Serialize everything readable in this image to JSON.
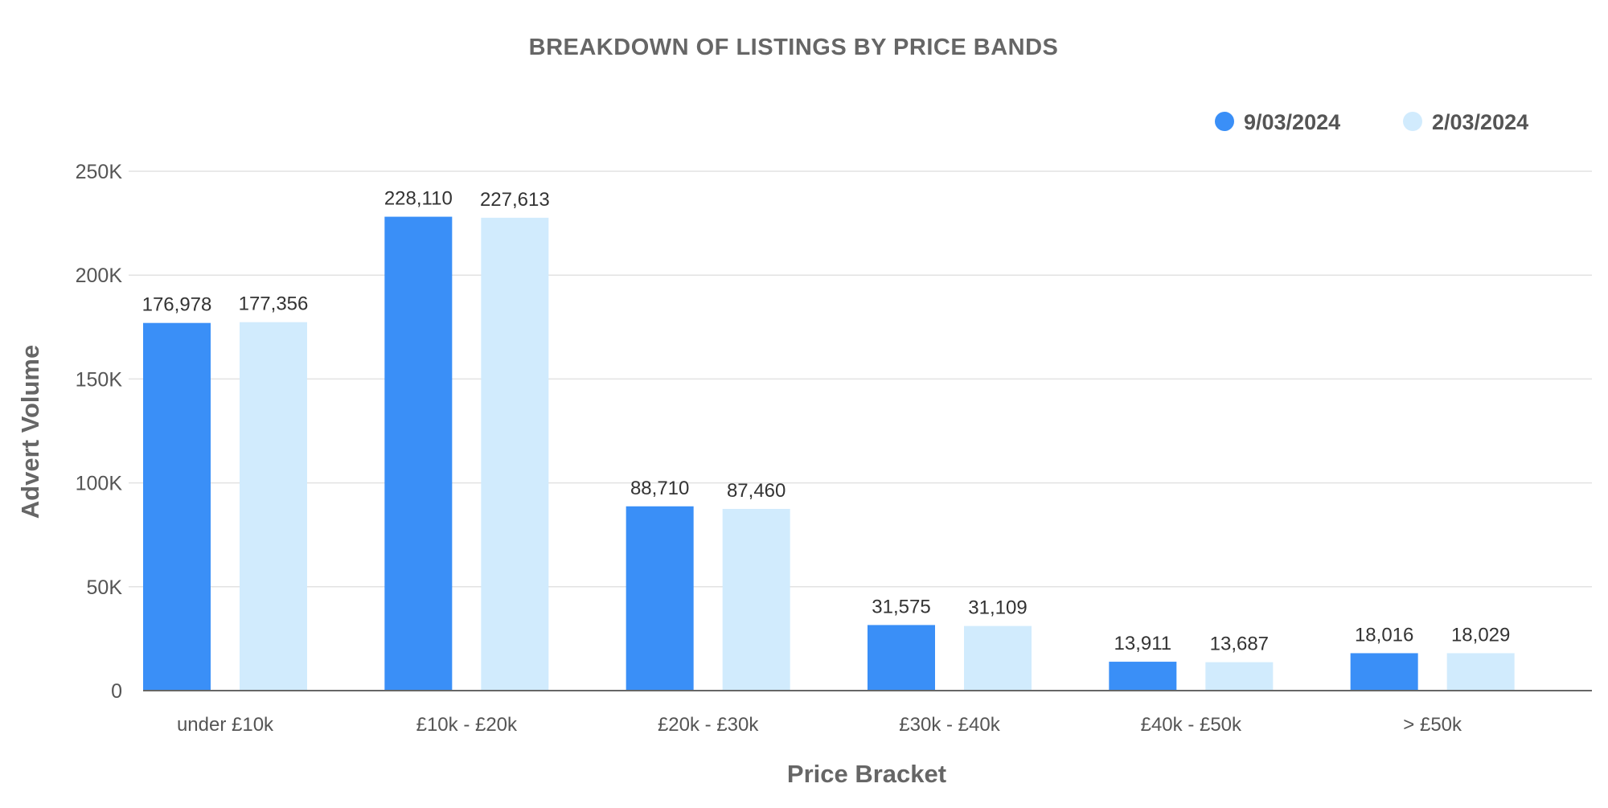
{
  "chart_data": {
    "type": "bar",
    "title": "BREAKDOWN  OF  LISTINGS  BY  PRICE BANDS",
    "xlabel": "Price Bracket",
    "ylabel": "Advert Volume",
    "categories": [
      "under £10k",
      "£10k - £20k",
      "£20k - £30k",
      "£30k - £40k",
      "£40k - £50k",
      "> £50k"
    ],
    "series": [
      {
        "name": "9/03/2024",
        "color": "#3a8ff7",
        "values": [
          176978,
          228110,
          88710,
          31575,
          13911,
          18016
        ],
        "labels": [
          "176,978",
          "228,110",
          "88,710",
          "31,575",
          "13,911",
          "18,016"
        ]
      },
      {
        "name": "2/03/2024",
        "color": "#d1ebfd",
        "values": [
          177356,
          227613,
          87460,
          31109,
          13687,
          18029
        ],
        "labels": [
          "177,356",
          "227,613",
          "87,460",
          "31,109",
          "13,687",
          "18,029"
        ]
      }
    ],
    "ylim": [
      0,
      250000
    ],
    "yticks": [
      0,
      50000,
      100000,
      150000,
      200000,
      250000
    ],
    "ytick_labels": [
      "0",
      "50K",
      "100K",
      "150K",
      "200K",
      "250K"
    ],
    "grid": true,
    "legend_position": "top-right"
  }
}
